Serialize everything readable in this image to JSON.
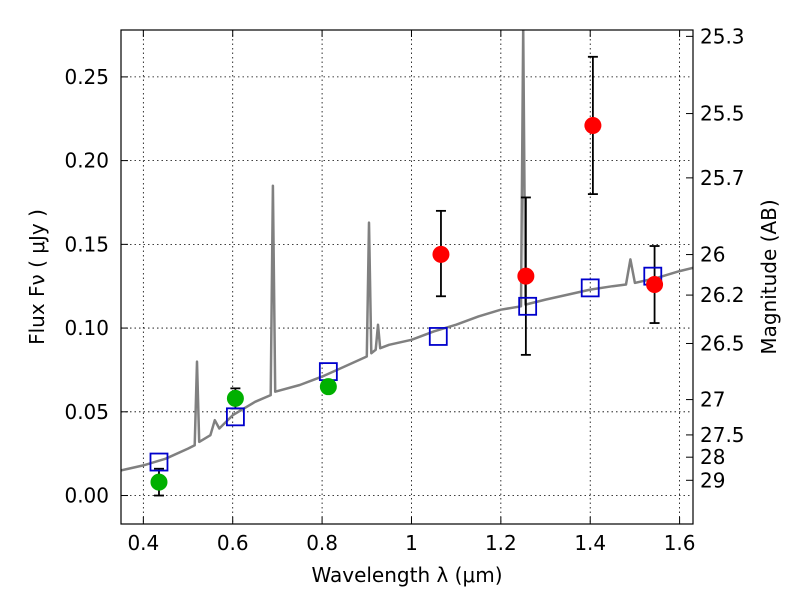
{
  "chart_data": {
    "type": "scatter",
    "xlabel": "Wavelength  λ (μm)",
    "ylabel": "Flux  Fν  ( μJy )",
    "y2label": "Magnitude (AB)",
    "xlim": [
      0.35,
      1.63
    ],
    "ylim": [
      -0.017,
      0.278
    ],
    "xticks": [
      0.4,
      0.6,
      0.8,
      1.0,
      1.2,
      1.4,
      1.6
    ],
    "xtick_labels": [
      "0.4",
      "0.6",
      "0.8",
      "1",
      "1.2",
      "1.4",
      "1.6"
    ],
    "yticks": [
      0.0,
      0.05,
      0.1,
      0.15,
      0.2,
      0.25
    ],
    "ytick_labels": [
      "0.00",
      "0.05",
      "0.10",
      "0.15",
      "0.20",
      "0.25"
    ],
    "y2_ticks": [
      {
        "label": "25.3",
        "flux": 0.2742
      },
      {
        "label": "25.5",
        "flux": 0.2281
      },
      {
        "label": "25.7",
        "flux": 0.1897
      },
      {
        "label": "26",
        "flux": 0.1439
      },
      {
        "label": "26.2",
        "flux": 0.1197
      },
      {
        "label": "26.5",
        "flux": 0.0908
      },
      {
        "label": "27",
        "flux": 0.0573
      },
      {
        "label": "27.5",
        "flux": 0.0362
      },
      {
        "label": "28",
        "flux": 0.0229
      },
      {
        "label": "29",
        "flux": 0.0091
      }
    ],
    "grid": true,
    "series": [
      {
        "kind": "model_spectrum",
        "color": "#808080",
        "x": [
          0.35,
          0.4,
          0.45,
          0.5,
          0.515,
          0.52,
          0.525,
          0.55,
          0.56,
          0.57,
          0.6,
          0.65,
          0.685,
          0.69,
          0.695,
          0.75,
          0.8,
          0.85,
          0.9,
          0.905,
          0.91,
          0.92,
          0.925,
          0.93,
          0.95,
          1.0,
          1.05,
          1.1,
          1.15,
          1.2,
          1.245,
          1.25,
          1.255,
          1.3,
          1.35,
          1.4,
          1.45,
          1.48,
          1.49,
          1.5,
          1.55,
          1.6,
          1.63
        ],
        "y": [
          0.015,
          0.018,
          0.022,
          0.028,
          0.03,
          0.08,
          0.032,
          0.036,
          0.045,
          0.04,
          0.048,
          0.056,
          0.06,
          0.185,
          0.062,
          0.066,
          0.071,
          0.077,
          0.083,
          0.163,
          0.085,
          0.087,
          0.102,
          0.088,
          0.09,
          0.093,
          0.098,
          0.102,
          0.107,
          0.111,
          0.113,
          0.28,
          0.114,
          0.117,
          0.12,
          0.123,
          0.125,
          0.126,
          0.141,
          0.127,
          0.13,
          0.134,
          0.136
        ]
      },
      {
        "kind": "model_photometry",
        "color": "#0000cc",
        "marker": "open-square",
        "x": [
          0.435,
          0.606,
          0.814,
          1.06,
          1.26,
          1.4,
          1.54
        ],
        "y": [
          0.02,
          0.047,
          0.074,
          0.095,
          0.113,
          0.124,
          0.131
        ]
      },
      {
        "kind": "observed_optical",
        "color": "#00b000",
        "marker": "filled-circle",
        "x": [
          0.435,
          0.606,
          0.814
        ],
        "y": [
          0.008,
          0.058,
          0.065
        ],
        "err": [
          0.008,
          0.006,
          0.003
        ]
      },
      {
        "kind": "observed_nir",
        "color": "#ff0000",
        "marker": "filled-circle",
        "x": [
          1.066,
          1.256,
          1.406,
          1.544
        ],
        "y": [
          0.144,
          0.131,
          0.221,
          0.126
        ],
        "err_low": [
          0.025,
          0.047,
          0.041,
          0.023
        ],
        "err_high": [
          0.026,
          0.047,
          0.041,
          0.023
        ]
      }
    ]
  }
}
